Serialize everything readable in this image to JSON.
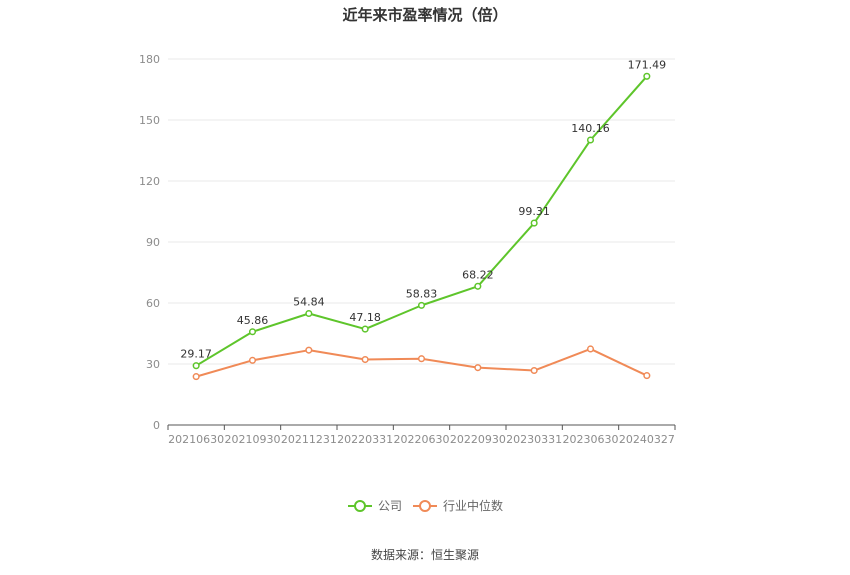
{
  "title": "近年来市盈率情况（倍）",
  "source": "数据来源：恒生聚源",
  "colors": {
    "company": "#5ec52b",
    "industry": "#f08a57",
    "grid": "#e8e8e8",
    "axis": "#555555"
  },
  "chart_data": {
    "type": "line",
    "title": "近年来市盈率情况（倍）",
    "xlabel": "",
    "ylabel": "",
    "ylim": [
      0,
      180
    ],
    "yticks": [
      0,
      30,
      60,
      90,
      120,
      150,
      180
    ],
    "grid": true,
    "legend_position": "bottom",
    "categories": [
      "20210630",
      "20210930",
      "20211231",
      "20220331",
      "20220630",
      "20220930",
      "20230331",
      "20230630",
      "20240327"
    ],
    "series": [
      {
        "name": "公司",
        "values": [
          29.17,
          45.86,
          54.84,
          47.18,
          58.83,
          68.22,
          99.31,
          140.16,
          171.49
        ],
        "labels": [
          "29.17",
          "45.86",
          "54.84",
          "47.18",
          "58.83",
          "68.22",
          "99.31",
          "140.16",
          "171.49"
        ]
      },
      {
        "name": "行业中位数",
        "values": [
          23.8,
          31.8,
          36.8,
          32.2,
          32.6,
          28.2,
          26.8,
          37.4,
          24.3
        ]
      }
    ]
  }
}
